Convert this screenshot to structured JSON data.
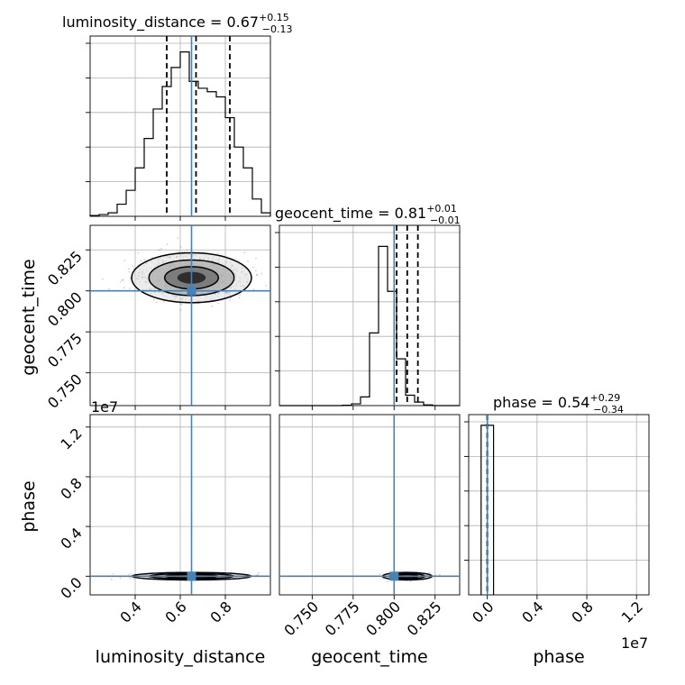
{
  "chart_data": [
    {
      "panel": "hist-luminosity_distance",
      "type": "histogram",
      "title": {
        "param": "luminosity_distance",
        "median": "0.67",
        "upper": "+0.15",
        "lower": "−0.13"
      },
      "xlim": [
        0.2,
        1.0
      ],
      "bin_edges_start": 0.2,
      "bin_width": 0.04,
      "values": [
        0.005,
        0.01,
        0.02,
        0.07,
        0.15,
        0.28,
        0.45,
        0.62,
        0.75,
        0.86,
        0.95,
        0.78,
        0.74,
        0.72,
        0.69,
        0.57,
        0.4,
        0.28,
        0.1,
        0.02
      ],
      "ymax": 1.0,
      "quantiles": [
        0.54,
        0.67,
        0.82
      ],
      "truth": 0.65
    },
    {
      "panel": "hist-geocent_time",
      "type": "histogram",
      "title": {
        "param": "geocent_time",
        "median": "0.81",
        "upper": "+0.01",
        "lower": "−0.01"
      },
      "xlim": [
        0.73,
        0.84
      ],
      "bin_edges_start": 0.73,
      "bin_width": 0.0055,
      "values": [
        0,
        0,
        0,
        0,
        0,
        0,
        0,
        0.002,
        0.01,
        0.05,
        0.42,
        0.92,
        0.66,
        0.27,
        0.06,
        0.02,
        0.004,
        0,
        0,
        0
      ],
      "ymax": 1.0,
      "quantiles": [
        0.8015,
        0.808,
        0.8145
      ],
      "truth": 0.8
    },
    {
      "panel": "hist-phase",
      "type": "histogram",
      "title": {
        "param": "phase",
        "median": "0.54",
        "upper": "+0.29",
        "lower": "−0.34"
      },
      "xlim": [
        -0.15,
        1.3
      ],
      "x_multiplier": "1e7",
      "bin_edges_start": -0.05,
      "bin_width": 0.05,
      "values": [
        0.98,
        0.98
      ],
      "ymax": 1.0,
      "quantiles": [
        0.0,
        0.0,
        0.0
      ],
      "truth": 0.0
    },
    {
      "panel": "2d-luminosity_distance-geocent_time",
      "type": "scatter",
      "xlim": [
        0.2,
        1.0
      ],
      "ylim": [
        0.73,
        0.84
      ],
      "center": [
        0.65,
        0.808
      ],
      "spread": [
        0.14,
        0.008
      ],
      "truth": [
        0.65,
        0.8
      ]
    },
    {
      "panel": "2d-luminosity_distance-phase",
      "type": "scatter",
      "xlim": [
        0.2,
        1.0
      ],
      "ylim": [
        -0.15,
        1.3
      ],
      "center": [
        0.65,
        0.0
      ],
      "spread": [
        0.14,
        0.004
      ],
      "truth": [
        0.65,
        0.0
      ]
    },
    {
      "panel": "2d-geocent_time-phase",
      "type": "scatter",
      "xlim": [
        0.73,
        0.84
      ],
      "ylim": [
        -0.15,
        1.3
      ],
      "center": [
        0.808,
        0.0
      ],
      "spread": [
        0.008,
        0.004
      ],
      "truth": [
        0.8,
        0.0
      ]
    }
  ],
  "axes": {
    "x_lumi_ticks": [
      "0.4",
      "0.6",
      "0.8"
    ],
    "x_lumi_values": [
      0.4,
      0.6,
      0.8
    ],
    "x_geo_ticks": [
      "0.750",
      "0.775",
      "0.800",
      "0.825"
    ],
    "x_geo_values": [
      0.75,
      0.775,
      0.8,
      0.825
    ],
    "x_phase_ticks": [
      "0.0",
      "0.4",
      "0.8",
      "1.2"
    ],
    "x_phase_values": [
      0.0,
      0.4,
      0.8,
      1.2
    ],
    "y_geo_ticks": [
      "0.750",
      "0.775",
      "0.800",
      "0.825"
    ],
    "y_geo_values": [
      0.75,
      0.775,
      0.8,
      0.825
    ],
    "y_phase_ticks": [
      "0.0",
      "0.4",
      "0.8",
      "1.2"
    ],
    "y_phase_values": [
      0.0,
      0.4,
      0.8,
      1.2
    ],
    "xlabel_lumi": "luminosity_distance",
    "xlabel_geo": "geocent_time",
    "xlabel_phase": "phase",
    "ylabel_geo": "geocent_time",
    "ylabel_phase": "phase",
    "offset_text": "1e7"
  },
  "colors": {
    "truth": "#4682b4",
    "hist": "#000000",
    "grid": "#b0b0b0"
  }
}
